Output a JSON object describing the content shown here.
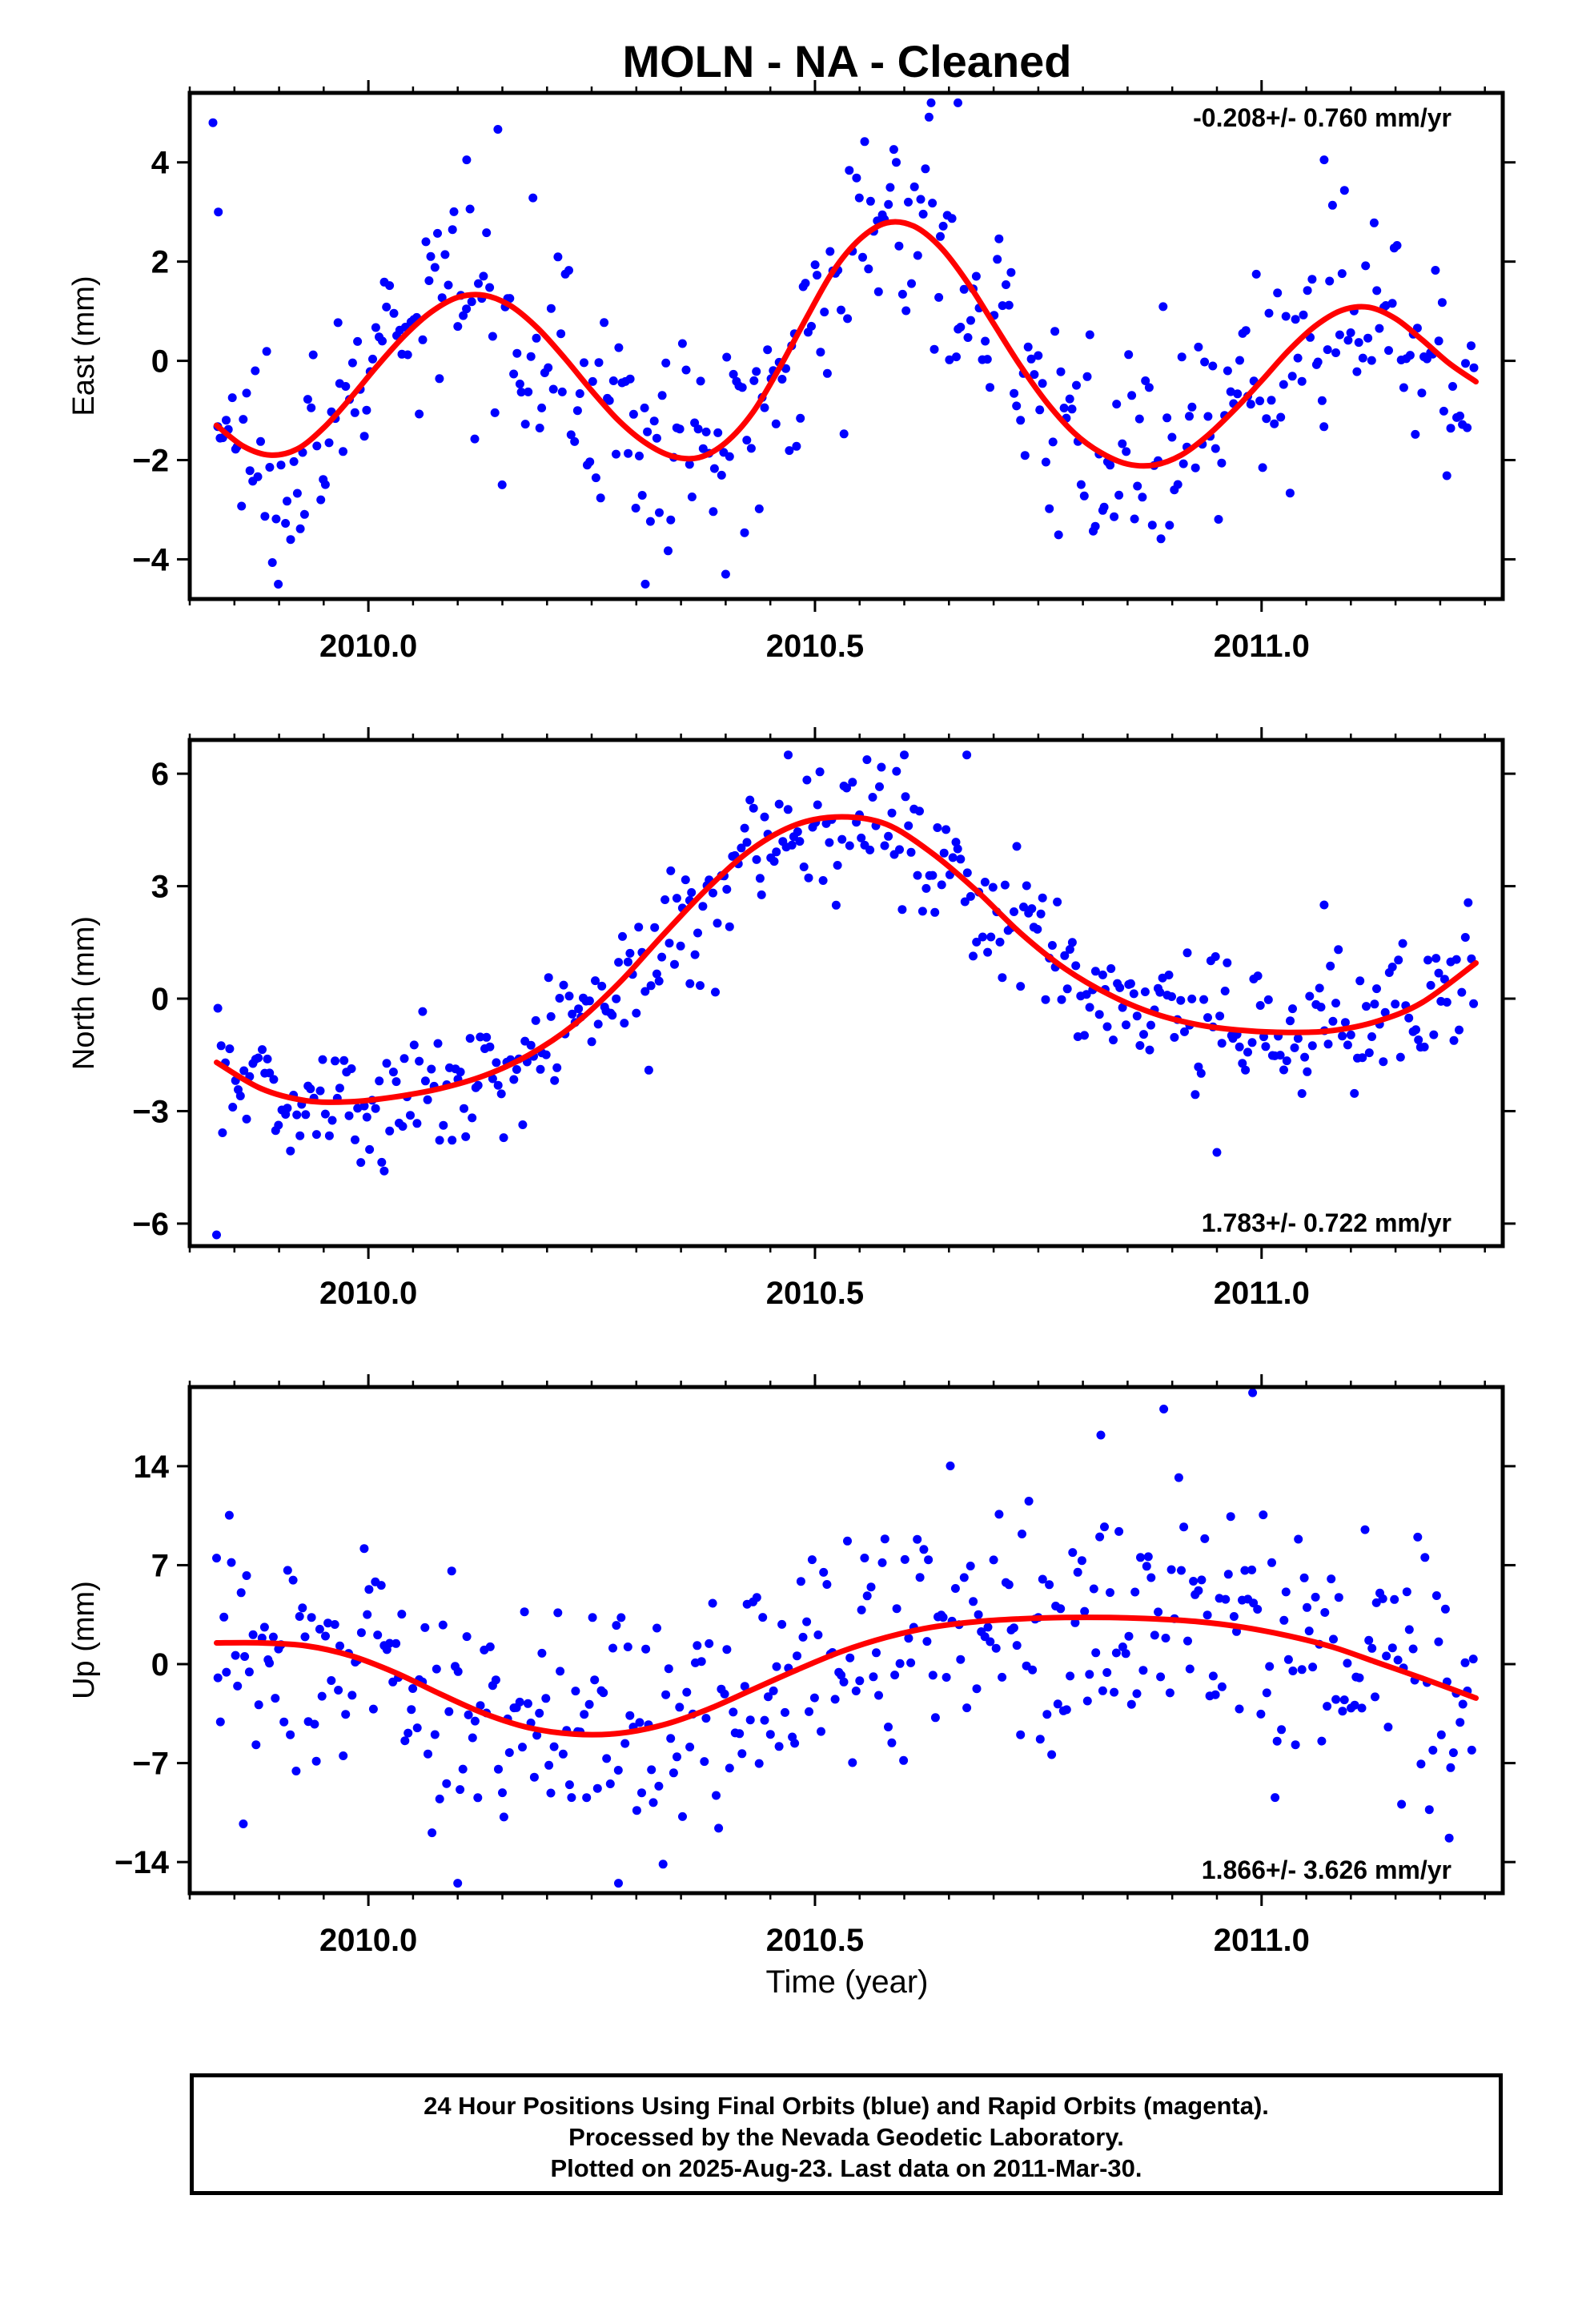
{
  "title": "MOLN  - NA - Cleaned",
  "xlabel": "Time (year)",
  "footer": {
    "line1": "24 Hour Positions Using Final Orbits (blue) and Rapid Orbits (magenta).",
    "line2": "Processed by the Nevada Geodetic Laboratory.",
    "line3": "Plotted on 2025-Aug-23. Last data on 2011-Mar-30."
  },
  "colors": {
    "points": "#0000ff",
    "fit": "#ff0000",
    "axes": "#000000"
  },
  "chart_data": [
    {
      "type": "scatter",
      "name": "east",
      "ylabel": "East (mm)",
      "xlim": [
        2009.8,
        2011.27
      ],
      "ylim": [
        -4.8,
        5.4
      ],
      "xticks": [
        2010.0,
        2010.5,
        2011.0
      ],
      "xtick_labels": [
        "2010.0",
        "2010.5",
        "2011.0"
      ],
      "yticks": [
        -4,
        -2,
        0,
        2,
        4
      ],
      "ytick_labels": [
        "−4",
        "−2",
        "0",
        "2",
        "4"
      ],
      "rate_label": "-0.208+/- 0.760 mm/yr",
      "rate_position": "top-right",
      "scatter_noise": 1.05,
      "outliers": [
        [
          2009.826,
          4.8
        ],
        [
          2009.832,
          3.0
        ],
        [
          2010.11,
          4.05
        ],
        [
          2010.63,
          5.2
        ],
        [
          2010.66,
          5.2
        ],
        [
          2011.07,
          4.05
        ],
        [
          2010.31,
          -4.5
        ],
        [
          2010.4,
          -4.3
        ]
      ],
      "fit": {
        "x": [
          2009.83,
          2009.86,
          2009.89,
          2009.92,
          2009.95,
          2009.98,
          2010.01,
          2010.04,
          2010.07,
          2010.1,
          2010.13,
          2010.16,
          2010.19,
          2010.22,
          2010.25,
          2010.28,
          2010.31,
          2010.34,
          2010.37,
          2010.4,
          2010.43,
          2010.46,
          2010.49,
          2010.52,
          2010.55,
          2010.58,
          2010.61,
          2010.64,
          2010.67,
          2010.7,
          2010.73,
          2010.76,
          2010.79,
          2010.82,
          2010.85,
          2010.88,
          2010.91,
          2010.94,
          2010.97,
          2011.0,
          2011.03,
          2011.06,
          2011.09,
          2011.12,
          2011.15,
          2011.18,
          2011.21,
          2011.24
        ],
        "y": [
          -1.3,
          -1.72,
          -1.9,
          -1.78,
          -1.35,
          -0.75,
          -0.1,
          0.5,
          0.98,
          1.28,
          1.32,
          1.1,
          0.65,
          0.05,
          -0.6,
          -1.2,
          -1.65,
          -1.92,
          -1.95,
          -1.65,
          -1.05,
          -0.15,
          0.85,
          1.8,
          2.45,
          2.78,
          2.72,
          2.3,
          1.6,
          0.75,
          -0.1,
          -0.85,
          -1.45,
          -1.85,
          -2.08,
          -2.1,
          -1.9,
          -1.5,
          -0.98,
          -0.4,
          0.2,
          0.7,
          1.02,
          1.08,
          0.85,
          0.42,
          -0.05,
          -0.42
        ]
      }
    },
    {
      "type": "scatter",
      "name": "north",
      "ylabel": "North (mm)",
      "xlim": [
        2009.8,
        2011.27
      ],
      "ylim": [
        -6.6,
        6.9
      ],
      "xticks": [
        2010.0,
        2010.5,
        2011.0
      ],
      "xtick_labels": [
        "2010.0",
        "2010.5",
        "2011.0"
      ],
      "yticks": [
        -6,
        -3,
        0,
        3,
        6
      ],
      "ytick_labels": [
        "−6",
        "−3",
        "0",
        "3",
        "6"
      ],
      "rate_label": "1.783+/- 0.722 mm/yr",
      "rate_position": "bottom-right",
      "scatter_noise": 0.9,
      "outliers": [
        [
          2009.83,
          -6.3
        ],
        [
          2010.36,
          0.4
        ],
        [
          2010.47,
          6.5
        ],
        [
          2010.6,
          6.5
        ],
        [
          2010.67,
          6.5
        ],
        [
          2010.95,
          -4.1
        ],
        [
          2011.07,
          2.5
        ]
      ],
      "fit": {
        "x": [
          2009.83,
          2009.88,
          2009.93,
          2009.98,
          2010.03,
          2010.08,
          2010.13,
          2010.18,
          2010.23,
          2010.28,
          2010.33,
          2010.38,
          2010.43,
          2010.48,
          2010.53,
          2010.58,
          2010.63,
          2010.68,
          2010.73,
          2010.78,
          2010.83,
          2010.88,
          2010.93,
          2010.98,
          2011.03,
          2011.08,
          2011.13,
          2011.18,
          2011.24
        ],
        "y": [
          -1.7,
          -2.4,
          -2.72,
          -2.75,
          -2.62,
          -2.4,
          -2.05,
          -1.5,
          -0.7,
          0.4,
          1.7,
          2.95,
          4.0,
          4.65,
          4.85,
          4.65,
          3.9,
          2.9,
          1.75,
          0.8,
          0.1,
          -0.4,
          -0.7,
          -0.85,
          -0.9,
          -0.85,
          -0.6,
          -0.1,
          0.95
        ]
      }
    },
    {
      "type": "scatter",
      "name": "up",
      "ylabel": "Up (mm)",
      "xlim": [
        2009.8,
        2011.27
      ],
      "ylim": [
        -16.2,
        19.6
      ],
      "xticks": [
        2010.0,
        2010.5,
        2011.0
      ],
      "xtick_labels": [
        "2010.0",
        "2010.5",
        "2011.0"
      ],
      "yticks": [
        -14,
        -7,
        0,
        7,
        14
      ],
      "ytick_labels": [
        "−14",
        "−7",
        "0",
        "7",
        "14"
      ],
      "rate_label": "1.866+/- 3.626 mm/yr",
      "rate_position": "bottom-right",
      "scatter_noise": 4.3,
      "outliers": [
        [
          2010.1,
          -15.5
        ],
        [
          2010.28,
          -15.5
        ],
        [
          2010.99,
          19.2
        ],
        [
          2010.82,
          16.2
        ],
        [
          2009.83,
          7.5
        ],
        [
          2009.86,
          -11.3
        ],
        [
          2011.21,
          -12.3
        ]
      ],
      "fit": {
        "x": [
          2009.83,
          2009.88,
          2009.93,
          2009.98,
          2010.03,
          2010.08,
          2010.13,
          2010.18,
          2010.23,
          2010.28,
          2010.33,
          2010.38,
          2010.43,
          2010.48,
          2010.53,
          2010.58,
          2010.63,
          2010.68,
          2010.73,
          2010.78,
          2010.83,
          2010.88,
          2010.93,
          2010.98,
          2011.03,
          2011.08,
          2011.13,
          2011.18,
          2011.24
        ],
        "y": [
          1.5,
          1.5,
          1.3,
          0.6,
          -0.6,
          -2.1,
          -3.5,
          -4.5,
          -4.95,
          -4.9,
          -4.3,
          -3.2,
          -1.8,
          -0.4,
          0.9,
          1.9,
          2.6,
          3.0,
          3.2,
          3.3,
          3.3,
          3.2,
          3.0,
          2.6,
          2.0,
          1.2,
          0.1,
          -1.0,
          -2.4
        ]
      }
    }
  ]
}
